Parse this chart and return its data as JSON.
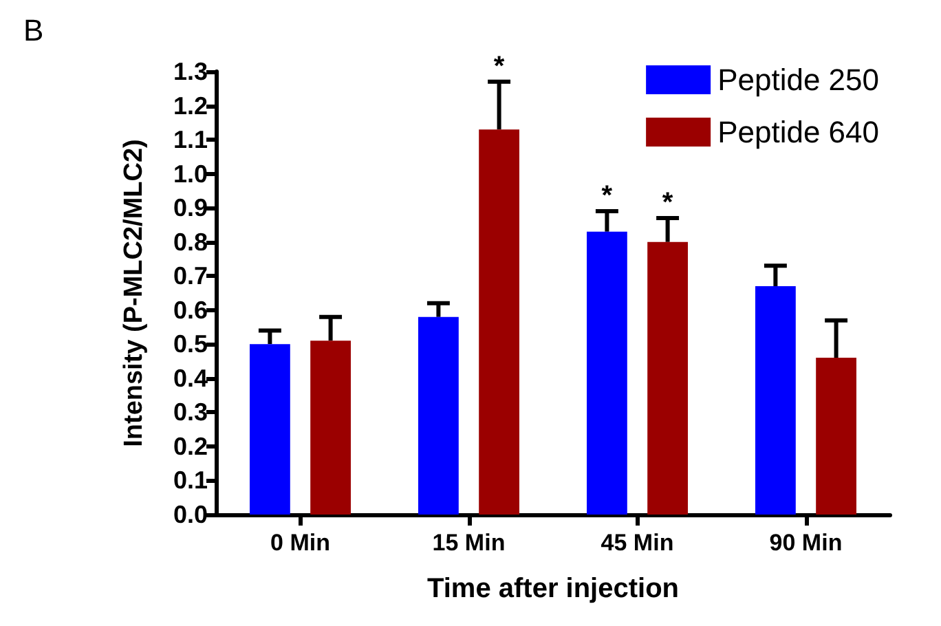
{
  "chart_data": {
    "type": "bar",
    "title": "B",
    "xlabel": "Time after injection",
    "ylabel": "Intensity (P-MLC2/MLC2)",
    "categories": [
      "0 Min",
      "15 Min",
      "45 Min",
      "90 Min"
    ],
    "series": [
      {
        "name": "Peptide 250",
        "color": "#0000ff",
        "values": [
          0.5,
          0.58,
          0.83,
          0.67
        ],
        "errors": [
          [
            0.5,
            0.54
          ],
          [
            0.58,
            0.62
          ],
          [
            0.83,
            0.89
          ],
          [
            0.67,
            0.73
          ]
        ],
        "value_labels": [
          null,
          null,
          "*",
          null
        ]
      },
      {
        "name": "Peptide 640",
        "color": "#9b0000",
        "values": [
          0.51,
          1.13,
          0.8,
          0.46
        ],
        "errors": [
          [
            0.51,
            0.58
          ],
          [
            1.13,
            1.27
          ],
          [
            0.8,
            0.87
          ],
          [
            0.46,
            0.57
          ]
        ],
        "value_labels": [
          null,
          "*",
          "*",
          null
        ]
      }
    ],
    "ylim": [
      0,
      1.3
    ],
    "yticks": [
      {
        "value": 0,
        "label": "0.0"
      },
      {
        "value": 0.1,
        "label": "0.1"
      },
      {
        "value": 0.2,
        "label": "0.2"
      },
      {
        "value": 0.3,
        "label": "0.3"
      },
      {
        "value": 0.4,
        "label": "0.4"
      },
      {
        "value": 0.5,
        "label": "0.5"
      },
      {
        "value": 0.6,
        "label": "0.6"
      },
      {
        "value": 0.7,
        "label": "0.7"
      },
      {
        "value": 0.8,
        "label": "0.8"
      },
      {
        "value": 0.9,
        "label": "0.9"
      },
      {
        "value": 1.0,
        "label": "1.0"
      },
      {
        "value": 1.1,
        "label": "1.1"
      },
      {
        "value": 1.2,
        "label": "1.2"
      },
      {
        "value": 1.3,
        "label": "1.3"
      }
    ],
    "grid": false,
    "legend": "top right"
  }
}
